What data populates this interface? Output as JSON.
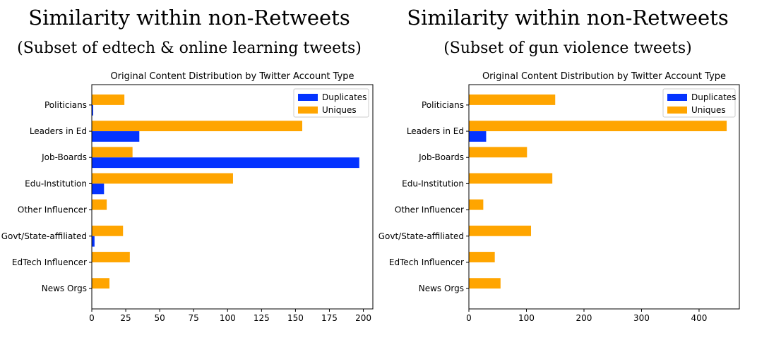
{
  "panels": [
    {
      "heading": "Similarity within non-Retweets",
      "subheading": "(Subset of edtech & online learning tweets)"
    },
    {
      "heading": "Similarity within non-Retweets",
      "subheading": "(Subset of gun violence tweets)"
    }
  ],
  "colors": {
    "duplicates": "#0433ff",
    "uniques": "#ffa500"
  },
  "chart_data": [
    {
      "type": "bar",
      "orientation": "horizontal",
      "title": "Original Content Distribution by Twitter Account Type",
      "xlabel": "",
      "ylabel": "",
      "categories": [
        "Politicians",
        "Leaders in Ed",
        "Job-Boards",
        "Edu-Institution",
        "Other Influencer",
        "Govt/State-affiliated",
        "EdTech Influencer",
        "News Orgs"
      ],
      "series": [
        {
          "name": "Duplicates",
          "values": [
            1,
            35,
            197,
            9,
            0,
            2,
            0,
            0
          ]
        },
        {
          "name": "Uniques",
          "values": [
            24,
            155,
            30,
            104,
            11,
            23,
            28,
            13
          ]
        }
      ],
      "xlim": [
        0,
        207
      ],
      "xticks": [
        0,
        25,
        50,
        75,
        100,
        125,
        150,
        175,
        200
      ],
      "legend": "top-right",
      "grid": false
    },
    {
      "type": "bar",
      "orientation": "horizontal",
      "title": "Original Content Distribution by Twitter Account Type",
      "xlabel": "",
      "ylabel": "",
      "categories": [
        "Politicians",
        "Leaders in Ed",
        "Job-Boards",
        "Edu-Institution",
        "Other Influencer",
        "Govt/State-affiliated",
        "EdTech Influencer",
        "News Orgs"
      ],
      "series": [
        {
          "name": "Duplicates",
          "values": [
            0,
            30,
            0,
            0,
            0,
            0,
            0,
            0
          ]
        },
        {
          "name": "Uniques",
          "values": [
            150,
            448,
            101,
            145,
            25,
            108,
            45,
            55
          ]
        }
      ],
      "xlim": [
        0,
        470
      ],
      "xticks": [
        0,
        100,
        200,
        300,
        400
      ],
      "legend": "top-right",
      "grid": false
    }
  ]
}
